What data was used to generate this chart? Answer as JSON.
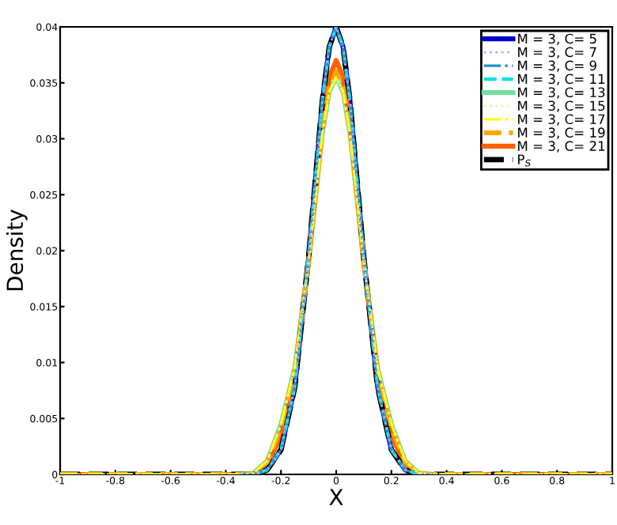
{
  "chart_data": {
    "type": "line",
    "xlabel": "X",
    "ylabel": "Density",
    "x": [
      -1,
      -0.4,
      -0.35,
      -0.3,
      -0.25,
      -0.2,
      -0.15,
      -0.1,
      -0.05,
      -0.025,
      0,
      0.025,
      0.05,
      0.1,
      0.15,
      0.2,
      0.25,
      0.3,
      0.35,
      0.4,
      1
    ],
    "xlim": [
      -1,
      1
    ],
    "xticks": [
      -1,
      -0.8,
      -0.6,
      -0.4,
      -0.2,
      0,
      0.2,
      0.4,
      0.6,
      0.8,
      1
    ],
    "ylim": [
      0,
      0.04
    ],
    "yticks": [
      0,
      0.005,
      0.01,
      0.015,
      0.02,
      0.025,
      0.03,
      0.035,
      0.04
    ],
    "grid": false,
    "legend": "top right",
    "series": [
      {
        "name": "M = 3, C= 5",
        "color": "#0000cc",
        "line_style": "solid",
        "values": [
          null,
          null,
          0,
          0,
          0.0004,
          0.0022,
          0.0078,
          0.0194,
          0.0334,
          0.0382,
          0.04,
          0.0382,
          0.0334,
          0.0194,
          0.0078,
          0.0022,
          0.0004,
          0,
          0,
          null,
          null
        ]
      },
      {
        "name": "M = 3, C= 7",
        "color": "#a0b0ff",
        "line_style": "dotted",
        "values": [
          null,
          null,
          0,
          0,
          0.0004,
          0.0022,
          0.0078,
          0.0194,
          0.0334,
          0.0382,
          0.04,
          0.0382,
          0.0334,
          0.0194,
          0.0078,
          0.0022,
          0.0004,
          0,
          0,
          null,
          null
        ]
      },
      {
        "name": "M = 3, C= 9",
        "color": "#1e90d0",
        "line_style": "dashdot",
        "values": [
          null,
          null,
          0,
          0,
          0.0004,
          0.0022,
          0.0078,
          0.0194,
          0.0334,
          0.0382,
          0.04,
          0.0382,
          0.0334,
          0.0194,
          0.0078,
          0.0022,
          0.0004,
          0,
          0,
          null,
          null
        ]
      },
      {
        "name": "M = 3, C= 11",
        "color": "#00e0e0",
        "line_style": "dashed",
        "values": [
          null,
          null,
          0,
          0,
          0.0004,
          0.0022,
          0.0078,
          0.0194,
          0.0334,
          0.0382,
          0.04,
          0.0382,
          0.0334,
          0.0194,
          0.0078,
          0.0022,
          0.0004,
          0,
          0,
          null,
          null
        ]
      },
      {
        "name": "M = 3, C= 13",
        "color": "#70e0a0",
        "line_style": "solid",
        "values": [
          null,
          null,
          0,
          0.0001,
          0.0012,
          0.0045,
          0.0095,
          0.019,
          0.0305,
          0.0342,
          0.0355,
          0.0342,
          0.0305,
          0.019,
          0.0095,
          0.0045,
          0.0012,
          0.0001,
          0,
          null,
          null
        ]
      },
      {
        "name": "M = 3, C= 15",
        "color": "#f0f0a0",
        "line_style": "dotted",
        "values": [
          0,
          0,
          0,
          0.0001,
          0.0012,
          0.0045,
          0.0095,
          0.019,
          0.0305,
          0.0342,
          0.0355,
          0.0342,
          0.0305,
          0.019,
          0.0095,
          0.0045,
          0.0012,
          0.0001,
          0,
          0,
          0
        ]
      },
      {
        "name": "M = 3, C= 17",
        "color": "#ffff00",
        "line_style": "dashdot",
        "values": [
          0,
          0,
          0,
          0.0001,
          0.0012,
          0.0045,
          0.0095,
          0.019,
          0.0305,
          0.0342,
          0.0355,
          0.0342,
          0.0305,
          0.019,
          0.0095,
          0.0045,
          0.0012,
          0.0001,
          0,
          0,
          0
        ]
      },
      {
        "name": "M = 3, C= 19",
        "color": "#ffa500",
        "line_style": "dashed",
        "values": [
          0,
          0,
          0,
          0.0001,
          0.0011,
          0.0042,
          0.0093,
          0.019,
          0.0308,
          0.0346,
          0.036,
          0.0346,
          0.0308,
          0.019,
          0.0093,
          0.0042,
          0.0011,
          0.0001,
          0,
          0,
          0
        ]
      },
      {
        "name": "M = 3, C= 21",
        "color": "#ff6000",
        "line_style": "solid",
        "values": [
          0,
          0,
          0,
          0,
          0.0008,
          0.0035,
          0.0088,
          0.019,
          0.0315,
          0.0355,
          0.037,
          0.0355,
          0.0315,
          0.019,
          0.0088,
          0.0035,
          0.0008,
          0,
          0,
          0,
          0
        ]
      },
      {
        "name": "P$_{S}$",
        "color": "#000000",
        "line_style": "dashed",
        "values": [
          0,
          0,
          0,
          0,
          0.0004,
          0.0022,
          0.0078,
          0.0194,
          0.0334,
          0.0382,
          0.04,
          0.0382,
          0.0334,
          0.0194,
          0.0078,
          0.0022,
          0.0004,
          0,
          0,
          0,
          0
        ]
      }
    ]
  }
}
